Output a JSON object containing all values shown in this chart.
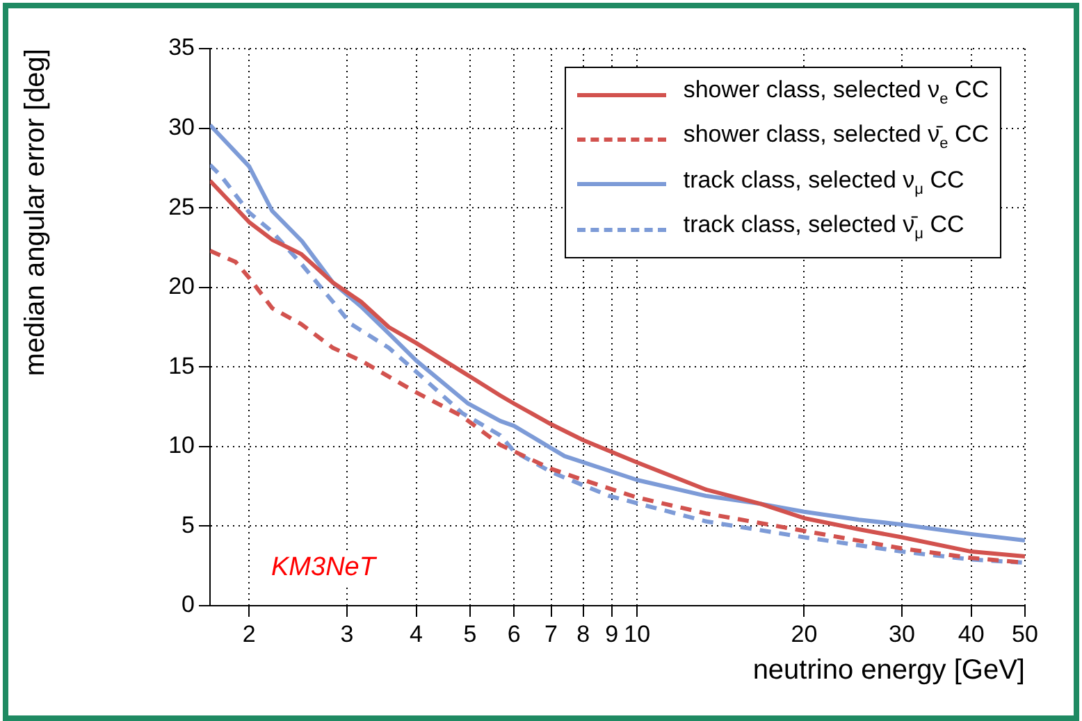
{
  "chart_data": {
    "type": "line",
    "xlabel": "neutrino energy [GeV]",
    "ylabel": "median angular error [deg]",
    "xlim": [
      1.7,
      50
    ],
    "xticks": [
      2,
      3,
      4,
      5,
      6,
      7,
      8,
      9,
      10,
      20,
      30,
      40,
      50
    ],
    "ylim": [
      0,
      35
    ],
    "yticks": [
      0,
      5,
      10,
      15,
      20,
      25,
      30,
      35
    ],
    "log": "x",
    "grid": true,
    "legend": "top right",
    "marker": "none",
    "annotations": [
      "KM3NeT"
    ],
    "series": [
      {
        "name": "shower class, selected ν$_{e}$ CC",
        "color": "#d2524e",
        "line_style": "solid",
        "x": [
          1.7,
          2,
          2.2,
          2.48,
          2.83,
          3.18,
          3.57,
          4,
          4.84,
          5.05,
          5.67,
          6,
          7,
          8,
          10,
          13.3,
          16.7,
          20,
          25.1,
          30,
          40,
          50
        ],
        "values": [
          26.7,
          24.1,
          23.0,
          22.1,
          20.3,
          19.1,
          17.5,
          16.5,
          14.7,
          14.3,
          13.2,
          12.7,
          11.4,
          10.4,
          9.0,
          7.3,
          6.4,
          5.5,
          4.8,
          4.3,
          3.4,
          3.1
        ]
      },
      {
        "name": "shower class, selected ν̄$_{e}$ CC",
        "color": "#d2524e",
        "line_style": "dashed",
        "x": [
          1.7,
          1.89,
          2,
          2.2,
          2.48,
          2.83,
          3.18,
          4,
          4.84,
          5.67,
          6,
          7,
          8,
          10,
          13.3,
          20,
          30,
          40,
          50
        ],
        "values": [
          22.3,
          21.6,
          20.6,
          18.7,
          17.7,
          16.2,
          15.4,
          13.4,
          11.9,
          10.1,
          9.7,
          8.6,
          7.9,
          6.8,
          5.8,
          4.7,
          3.6,
          3.0,
          2.7
        ]
      },
      {
        "name": "track class, selected ν$_{μ}$ CC",
        "color": "#7d9bd7",
        "line_style": "solid",
        "x": [
          1.7,
          2,
          2.2,
          2.49,
          2.83,
          3.18,
          3.57,
          4,
          4.96,
          5.67,
          6,
          7,
          7.4,
          10,
          13.3,
          16.7,
          20,
          25.1,
          30,
          40,
          50
        ],
        "values": [
          30.2,
          27.6,
          24.8,
          22.9,
          20.3,
          18.8,
          17.1,
          15.4,
          12.7,
          11.6,
          11.3,
          9.9,
          9.4,
          7.9,
          6.9,
          6.4,
          5.9,
          5.4,
          5.1,
          4.5,
          4.1
        ]
      },
      {
        "name": "track class, selected ν̄$_{μ}$ CC",
        "color": "#7d9bd7",
        "line_style": "dashed",
        "x": [
          1.7,
          1.78,
          2,
          2.2,
          2.48,
          2.83,
          3.05,
          3.57,
          4,
          4.84,
          5.67,
          6,
          7,
          8.9,
          13.3,
          20,
          30,
          40,
          50
        ],
        "values": [
          27.7,
          27.0,
          24.7,
          23.5,
          21.5,
          19.1,
          17.7,
          16.2,
          14.7,
          12.1,
          10.7,
          9.7,
          8.4,
          6.9,
          5.3,
          4.3,
          3.4,
          2.9,
          2.7
        ]
      }
    ]
  }
}
